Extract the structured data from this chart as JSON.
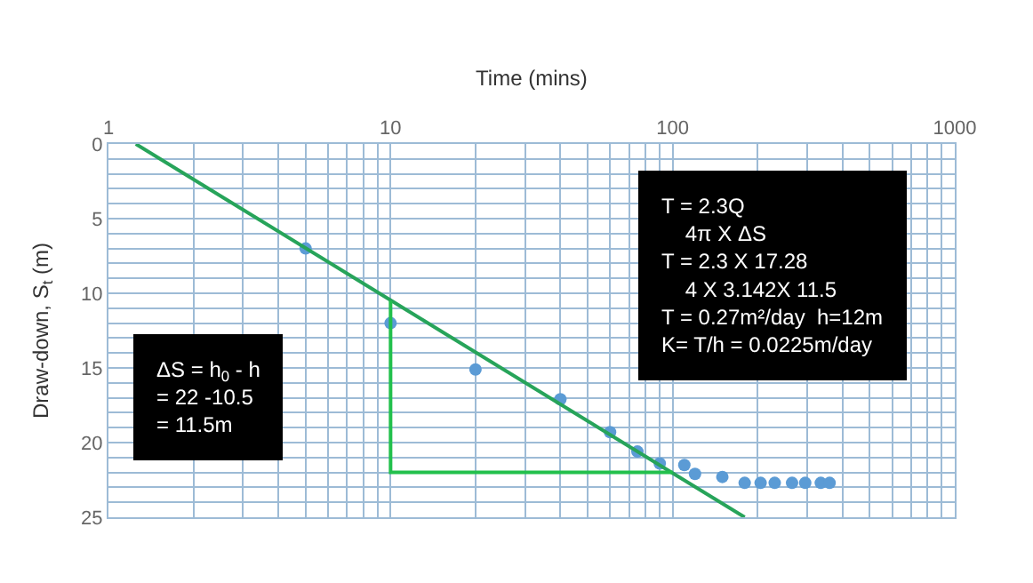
{
  "chart_data": {
    "type": "scatter",
    "xlabel": "Time (mins)",
    "ylabel": "Draw-down, S$_{t}$ (m)",
    "log": "x",
    "xlim": [
      1,
      1000
    ],
    "xticks": [
      1,
      10,
      100,
      1000
    ],
    "ylim": [
      25,
      0
    ],
    "yticks": [
      0,
      5,
      10,
      15,
      20,
      25
    ],
    "grid": true,
    "legend": false,
    "series": [
      {
        "marker": "circle",
        "color": "#5b9bd5",
        "x": [
          5,
          10,
          20,
          40,
          60,
          75,
          90,
          110,
          120,
          150,
          180,
          205,
          230,
          265,
          295,
          335,
          360
        ],
        "values": [
          7.0,
          12.0,
          15.1,
          17.1,
          19.3,
          20.6,
          21.4,
          21.5,
          22.1,
          22.3,
          22.7,
          22.7,
          22.7,
          22.7,
          22.7,
          22.7,
          22.7
        ]
      },
      {
        "type": "line",
        "line_style": "solid",
        "color": "#27a45a",
        "x": [
          1.25,
          180
        ],
        "values": [
          0,
          25
        ]
      },
      {
        "type": "line",
        "line_style": "solid",
        "color": "#22c04c",
        "x": [
          10,
          10,
          100
        ],
        "values": [
          10.5,
          22,
          22
        ]
      }
    ],
    "annotations": [
      "ΔS = h$_{0}$ - h\n= 22 -10.5\n= 11.5m",
      "T = 2.3Q\n    4π X ΔS\nT = 2.3 X 17.28\n    4 X 3.142X 11.5\nT = 0.27m²/day  h=12m\nK= T/h = 0.0225m/day"
    ]
  }
}
